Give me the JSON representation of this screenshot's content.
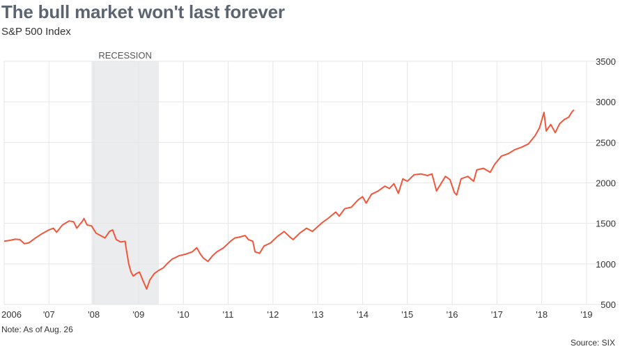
{
  "title": "The bull market won't last forever",
  "subtitle": "S&P 500 Index",
  "note": "Note: As of Aug. 26",
  "source": "Source: SIX",
  "colors": {
    "line": "#f1563a",
    "grid": "#e6e6e6",
    "recession": "#ebecee",
    "title": "#5b6470"
  },
  "chart_data": {
    "type": "line",
    "title": "The bull market won't last forever",
    "subtitle": "S&P 500 Index",
    "xlabel": "",
    "ylabel": "",
    "xlim": [
      2006.0,
      2018.9
    ],
    "ylim": [
      500,
      3500
    ],
    "x_ticks": [
      {
        "value": 2006,
        "label": "2006"
      },
      {
        "value": 2007,
        "label": "'07"
      },
      {
        "value": 2008,
        "label": "'08"
      },
      {
        "value": 2009,
        "label": "'09"
      },
      {
        "value": 2010,
        "label": "'10"
      },
      {
        "value": 2011,
        "label": "'11"
      },
      {
        "value": 2012,
        "label": "'12"
      },
      {
        "value": 2013,
        "label": "'13"
      },
      {
        "value": 2014,
        "label": "'14"
      },
      {
        "value": 2015,
        "label": "'15"
      },
      {
        "value": 2016,
        "label": "'16"
      },
      {
        "value": 2017,
        "label": "'17"
      },
      {
        "value": 2018,
        "label": "'18"
      },
      {
        "value": 2019,
        "label": "'19"
      }
    ],
    "y_ticks": [
      500,
      1000,
      1500,
      2000,
      2500,
      3000,
      3500
    ],
    "y_tick_labels": [
      "500",
      "1000",
      "1500",
      "2000",
      "2500",
      "3000",
      "3500"
    ],
    "y_axis_position": "right",
    "grid": true,
    "legend": "none",
    "shaded_regions": [
      {
        "label": "RECESSION",
        "start": 2007.95,
        "end": 2009.45
      }
    ],
    "series": [
      {
        "points": [
          [
            2006.0,
            1280
          ],
          [
            2006.12,
            1290
          ],
          [
            2006.25,
            1305
          ],
          [
            2006.35,
            1300
          ],
          [
            2006.45,
            1250
          ],
          [
            2006.55,
            1260
          ],
          [
            2006.7,
            1320
          ],
          [
            2006.85,
            1375
          ],
          [
            2007.0,
            1420
          ],
          [
            2007.1,
            1440
          ],
          [
            2007.17,
            1390
          ],
          [
            2007.3,
            1480
          ],
          [
            2007.45,
            1530
          ],
          [
            2007.55,
            1520
          ],
          [
            2007.62,
            1440
          ],
          [
            2007.75,
            1530
          ],
          [
            2007.78,
            1560
          ],
          [
            2007.85,
            1480
          ],
          [
            2007.95,
            1470
          ],
          [
            2008.05,
            1380
          ],
          [
            2008.15,
            1350
          ],
          [
            2008.25,
            1320
          ],
          [
            2008.35,
            1400
          ],
          [
            2008.42,
            1420
          ],
          [
            2008.5,
            1300
          ],
          [
            2008.6,
            1270
          ],
          [
            2008.7,
            1280
          ],
          [
            2008.72,
            1200
          ],
          [
            2008.78,
            1000
          ],
          [
            2008.83,
            900
          ],
          [
            2008.88,
            850
          ],
          [
            2008.95,
            880
          ],
          [
            2009.02,
            900
          ],
          [
            2009.1,
            790
          ],
          [
            2009.18,
            690
          ],
          [
            2009.25,
            800
          ],
          [
            2009.35,
            880
          ],
          [
            2009.45,
            920
          ],
          [
            2009.55,
            950
          ],
          [
            2009.65,
            1010
          ],
          [
            2009.75,
            1060
          ],
          [
            2009.9,
            1100
          ],
          [
            2010.05,
            1120
          ],
          [
            2010.2,
            1150
          ],
          [
            2010.3,
            1200
          ],
          [
            2010.38,
            1120
          ],
          [
            2010.45,
            1070
          ],
          [
            2010.55,
            1030
          ],
          [
            2010.65,
            1100
          ],
          [
            2010.75,
            1150
          ],
          [
            2010.9,
            1200
          ],
          [
            2011.05,
            1280
          ],
          [
            2011.15,
            1320
          ],
          [
            2011.25,
            1330
          ],
          [
            2011.38,
            1350
          ],
          [
            2011.45,
            1300
          ],
          [
            2011.55,
            1280
          ],
          [
            2011.6,
            1150
          ],
          [
            2011.7,
            1130
          ],
          [
            2011.8,
            1220
          ],
          [
            2011.95,
            1260
          ],
          [
            2012.1,
            1340
          ],
          [
            2012.25,
            1400
          ],
          [
            2012.38,
            1330
          ],
          [
            2012.45,
            1300
          ],
          [
            2012.6,
            1380
          ],
          [
            2012.75,
            1440
          ],
          [
            2012.88,
            1400
          ],
          [
            2013.0,
            1460
          ],
          [
            2013.1,
            1510
          ],
          [
            2013.25,
            1570
          ],
          [
            2013.4,
            1640
          ],
          [
            2013.48,
            1590
          ],
          [
            2013.6,
            1680
          ],
          [
            2013.75,
            1700
          ],
          [
            2013.9,
            1790
          ],
          [
            2014.0,
            1830
          ],
          [
            2014.08,
            1750
          ],
          [
            2014.2,
            1860
          ],
          [
            2014.35,
            1900
          ],
          [
            2014.5,
            1960
          ],
          [
            2014.6,
            1930
          ],
          [
            2014.7,
            1990
          ],
          [
            2014.8,
            1870
          ],
          [
            2014.9,
            2050
          ],
          [
            2015.0,
            2020
          ],
          [
            2015.15,
            2100
          ],
          [
            2015.3,
            2110
          ],
          [
            2015.45,
            2090
          ],
          [
            2015.55,
            2110
          ],
          [
            2015.65,
            1900
          ],
          [
            2015.75,
            1990
          ],
          [
            2015.85,
            2080
          ],
          [
            2015.95,
            2040
          ],
          [
            2016.05,
            1880
          ],
          [
            2016.1,
            1850
          ],
          [
            2016.2,
            2050
          ],
          [
            2016.35,
            2080
          ],
          [
            2016.48,
            2020
          ],
          [
            2016.55,
            2160
          ],
          [
            2016.7,
            2180
          ],
          [
            2016.85,
            2130
          ],
          [
            2016.95,
            2230
          ],
          [
            2017.1,
            2330
          ],
          [
            2017.25,
            2360
          ],
          [
            2017.4,
            2410
          ],
          [
            2017.55,
            2440
          ],
          [
            2017.7,
            2480
          ],
          [
            2017.85,
            2580
          ],
          [
            2017.95,
            2680
          ],
          [
            2018.05,
            2870
          ],
          [
            2018.1,
            2640
          ],
          [
            2018.2,
            2720
          ],
          [
            2018.3,
            2620
          ],
          [
            2018.4,
            2730
          ],
          [
            2018.5,
            2780
          ],
          [
            2018.6,
            2810
          ],
          [
            2018.68,
            2880
          ],
          [
            2018.72,
            2900
          ]
        ]
      }
    ]
  }
}
